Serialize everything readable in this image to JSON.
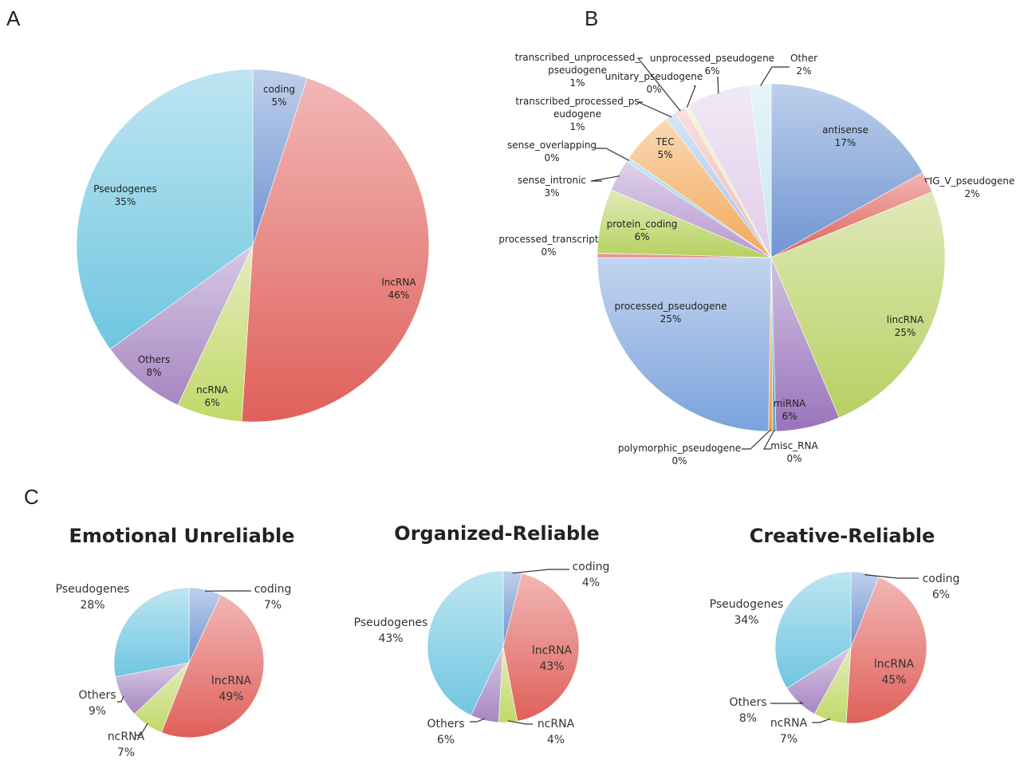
{
  "panels": {
    "a": "A",
    "b": "B",
    "c": "C"
  },
  "colors": {
    "coding": "#6f95d2",
    "lncRNA": "#e0605a",
    "ncRNA": "#c2d86a",
    "Others": "#a786c2",
    "Pseudogenes": "#6fc6e0",
    "antisense": "#6f95d2",
    "IG_V_pseudogene": "#e0605a",
    "lincRNA": "#b8cf62",
    "misc_RNA": "#4fb0c8",
    "miRNA": "#9a74bc",
    "polymorphic_pseudogene": "#f2a04a",
    "processed_pseudogene": "#7aa2dc",
    "processed_transcript": "#e3746c",
    "protein_coding": "#b7d160",
    "sense_intronic": "#b898cf",
    "sense_overlapping": "#79cde2",
    "TEC": "#f3a95a",
    "transcribed_processed_pseudogene": "#a9c3ec",
    "transcribed_unprocessed_pseudogene": "#f0b8b5",
    "unitary_pseudogene": "#ddeaa8",
    "unprocessed_pseudogene": "#e0cde9",
    "Other": "#c8e7f1"
  },
  "chart_data": [
    {
      "type": "pie",
      "panel": "A",
      "title": "",
      "slices": [
        {
          "label": "coding",
          "value": 5
        },
        {
          "label": "lncRNA",
          "value": 46
        },
        {
          "label": "ncRNA",
          "value": 6
        },
        {
          "label": "Others",
          "value": 8
        },
        {
          "label": "Pseudogenes",
          "value": 35
        }
      ]
    },
    {
      "type": "pie",
      "panel": "B",
      "title": "",
      "slices": [
        {
          "label": "antisense",
          "value": 17.0
        },
        {
          "label": "IG_V_pseudogene",
          "value": 2.0
        },
        {
          "label": "lincRNA",
          "value": 25.0
        },
        {
          "label": "miRNA",
          "value": 6.0
        },
        {
          "label": "misc_RNA",
          "value": 0.3
        },
        {
          "label": "polymorphic_pseudogene",
          "value": 0.4
        },
        {
          "label": "processed_pseudogene",
          "value": 25.0
        },
        {
          "label": "processed_transcript",
          "value": 0.4
        },
        {
          "label": "protein_coding",
          "value": 6.0
        },
        {
          "label": "sense_intronic",
          "value": 3.0
        },
        {
          "label": "sense_overlapping",
          "value": 0.4
        },
        {
          "label": "TEC",
          "value": 5.0
        },
        {
          "label": "transcribed_processed_pseudogene",
          "value": 1.0
        },
        {
          "label": "transcribed_unprocessed_pseudogene",
          "value": 1.0
        },
        {
          "label": "unitary_pseudogene",
          "value": 0.4
        },
        {
          "label": "unprocessed_pseudogene",
          "value": 6.0
        },
        {
          "label": "Other",
          "value": 2.0
        }
      ]
    },
    {
      "type": "pie",
      "panel": "C",
      "title": "Emotional Unreliable",
      "slices": [
        {
          "label": "coding",
          "value": 7
        },
        {
          "label": "lncRNA",
          "value": 49
        },
        {
          "label": "ncRNA",
          "value": 7
        },
        {
          "label": "Others",
          "value": 9
        },
        {
          "label": "Pseudogenes",
          "value": 28
        }
      ]
    },
    {
      "type": "pie",
      "panel": "C",
      "title": "Organized-Reliable",
      "slices": [
        {
          "label": "coding",
          "value": 4
        },
        {
          "label": "lncRNA",
          "value": 43
        },
        {
          "label": "ncRNA",
          "value": 4
        },
        {
          "label": "Others",
          "value": 6
        },
        {
          "label": "Pseudogenes",
          "value": 43
        }
      ]
    },
    {
      "type": "pie",
      "panel": "C",
      "title": "Creative-Reliable",
      "slices": [
        {
          "label": "coding",
          "value": 6
        },
        {
          "label": "lncRNA",
          "value": 45
        },
        {
          "label": "ncRNA",
          "value": 7
        },
        {
          "label": "Others",
          "value": 8
        },
        {
          "label": "Pseudogenes",
          "value": 34
        }
      ]
    }
  ],
  "label_text": {
    "A": {
      "coding": [
        "coding",
        "5%"
      ],
      "lncRNA": [
        "lncRNA",
        "46%"
      ],
      "ncRNA": [
        "ncRNA",
        "6%"
      ],
      "Others": [
        "Others",
        "8%"
      ],
      "Pseudogenes": [
        "Pseudogenes",
        "35%"
      ]
    },
    "B": {
      "antisense": [
        "antisense",
        "17%"
      ],
      "IG_V_pseudogene": [
        "IG_V_pseudogene",
        "2%"
      ],
      "lincRNA": [
        "lincRNA",
        "25%"
      ],
      "miRNA": [
        "miRNA",
        "6%"
      ],
      "misc_RNA": [
        "misc_RNA",
        "0%"
      ],
      "polymorphic_pseudogene": [
        "polymorphic_pseudogene",
        "0%"
      ],
      "processed_pseudogene": [
        "processed_pseudogene",
        "25%"
      ],
      "processed_transcript": [
        "processed_transcript",
        "0%"
      ],
      "protein_coding": [
        "protein_coding",
        "6%"
      ],
      "sense_intronic": [
        "sense_intronic",
        "3%"
      ],
      "sense_overlapping": [
        "sense_overlapping",
        "0%"
      ],
      "TEC": [
        "TEC",
        "5%"
      ],
      "transcribed_processed_pseudogene": [
        "transcribed_processed_ps",
        "eudogene",
        "1%"
      ],
      "transcribed_unprocessed_pseudogene": [
        "transcribed_unprocessed_",
        "pseudogene",
        "1%"
      ],
      "unitary_pseudogene": [
        "unitary_pseudogene",
        "0%"
      ],
      "unprocessed_pseudogene": [
        "unprocessed_pseudogene",
        "6%"
      ],
      "Other": [
        "Other",
        "2%"
      ]
    },
    "C1": {
      "coding": [
        "coding",
        "7%"
      ],
      "lncRNA": [
        "lncRNA",
        "49%"
      ],
      "ncRNA": [
        "ncRNA",
        "7%"
      ],
      "Others": [
        "Others",
        "9%"
      ],
      "Pseudogenes": [
        "Pseudogenes",
        "28%"
      ]
    },
    "C2": {
      "coding": [
        "coding",
        "4%"
      ],
      "lncRNA": [
        "lncRNA",
        "43%"
      ],
      "ncRNA": [
        "ncRNA",
        "4%"
      ],
      "Others": [
        "Others",
        "6%"
      ],
      "Pseudogenes": [
        "Pseudogenes",
        "43%"
      ]
    },
    "C3": {
      "coding": [
        "coding",
        "6%"
      ],
      "lncRNA": [
        "lncRNA",
        "45%"
      ],
      "ncRNA": [
        "ncRNA",
        "7%"
      ],
      "Others": [
        "Others",
        "8%"
      ],
      "Pseudogenes": [
        "Pseudogenes",
        "34%"
      ]
    }
  }
}
